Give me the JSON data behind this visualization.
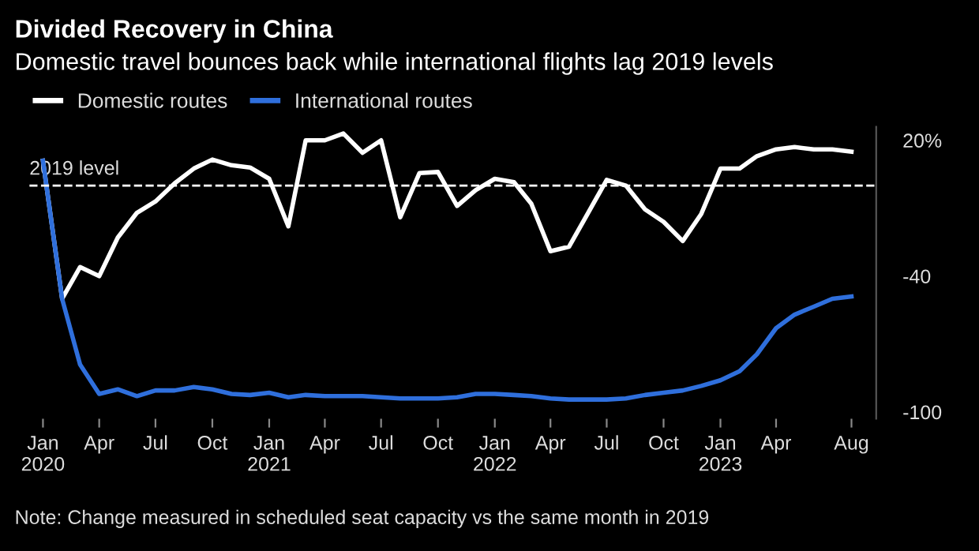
{
  "chart_data": {
    "type": "line",
    "title": "Divided Recovery in China",
    "subtitle": "Domestic travel bounces back while international flights lag 2019 levels",
    "x": [
      "2020-01",
      "2020-02",
      "2020-03",
      "2020-04",
      "2020-05",
      "2020-06",
      "2020-07",
      "2020-08",
      "2020-09",
      "2020-10",
      "2020-11",
      "2020-12",
      "2021-01",
      "2021-02",
      "2021-03",
      "2021-04",
      "2021-05",
      "2021-06",
      "2021-07",
      "2021-08",
      "2021-09",
      "2021-10",
      "2021-11",
      "2021-12",
      "2022-01",
      "2022-02",
      "2022-03",
      "2022-04",
      "2022-05",
      "2022-06",
      "2022-07",
      "2022-08",
      "2022-09",
      "2022-10",
      "2022-11",
      "2022-12",
      "2023-01",
      "2023-02",
      "2023-03",
      "2023-04",
      "2023-05",
      "2023-06",
      "2023-07",
      "2023-08"
    ],
    "series": [
      {
        "name": "Domestic routes",
        "color": "#ffffff",
        "values": [
          11,
          -50,
          -36,
          -40,
          -23,
          -12,
          -7,
          1,
          7.5,
          11.5,
          9,
          8,
          3,
          -18,
          20,
          20,
          23,
          14.5,
          20,
          -14,
          5.5,
          6,
          -9,
          -2,
          3,
          1.5,
          -8,
          -29,
          -27,
          -12,
          2.5,
          0,
          -10.5,
          -16,
          -24.5,
          -12.5,
          7.5,
          7.5,
          13,
          16,
          17,
          16,
          16,
          15
        ]
      },
      {
        "name": "International routes",
        "color": "#2f6fdc",
        "values": [
          11,
          -50,
          -79,
          -92,
          -90,
          -93,
          -90.5,
          -90.5,
          -89,
          -90,
          -92,
          -92.5,
          -91.5,
          -93.5,
          -92.5,
          -93,
          -93,
          -93,
          -93.5,
          -94,
          -94,
          -94,
          -93.5,
          -92,
          -92,
          -92.5,
          -93,
          -94,
          -94.5,
          -94.5,
          -94.5,
          -94,
          -92.5,
          -91.5,
          -90.5,
          -88.5,
          -86,
          -82,
          -74.5,
          -63,
          -57,
          -53.5,
          -50,
          -49
        ]
      }
    ],
    "xlim": [
      "2019-12-10",
      "2023-09-10"
    ],
    "xticks": [
      {
        "value": "2020-01",
        "label": "Jan\n2020"
      },
      {
        "value": "2020-04",
        "label": "Apr"
      },
      {
        "value": "2020-07",
        "label": "Jul"
      },
      {
        "value": "2020-10",
        "label": "Oct"
      },
      {
        "value": "2021-01",
        "label": "Jan\n2021"
      },
      {
        "value": "2021-04",
        "label": "Apr"
      },
      {
        "value": "2021-07",
        "label": "Jul"
      },
      {
        "value": "2021-10",
        "label": "Oct"
      },
      {
        "value": "2022-01",
        "label": "Jan\n2022"
      },
      {
        "value": "2022-04",
        "label": "Apr"
      },
      {
        "value": "2022-07",
        "label": "Jul"
      },
      {
        "value": "2022-10",
        "label": "Oct"
      },
      {
        "value": "2023-01",
        "label": "Jan\n2023"
      },
      {
        "value": "2023-04",
        "label": "Apr"
      },
      {
        "value": "2023-08",
        "label": "Aug"
      }
    ],
    "ylim": [
      -103,
      26
    ],
    "yticks": [
      {
        "value": -100,
        "label": "-100"
      },
      {
        "value": -40,
        "label": "-40"
      },
      {
        "value": 20,
        "label": "20%"
      }
    ],
    "ref_lines": [
      {
        "axis": "y",
        "value": 0,
        "label": "2019 level",
        "color": "#ffffff",
        "line_style": "dashed"
      }
    ],
    "annotations": [
      "Note: Change measured in scheduled seat capacity vs the same month in 2019"
    ],
    "legend": "top left",
    "grid": false,
    "marker": "none",
    "line_style": "solid"
  }
}
